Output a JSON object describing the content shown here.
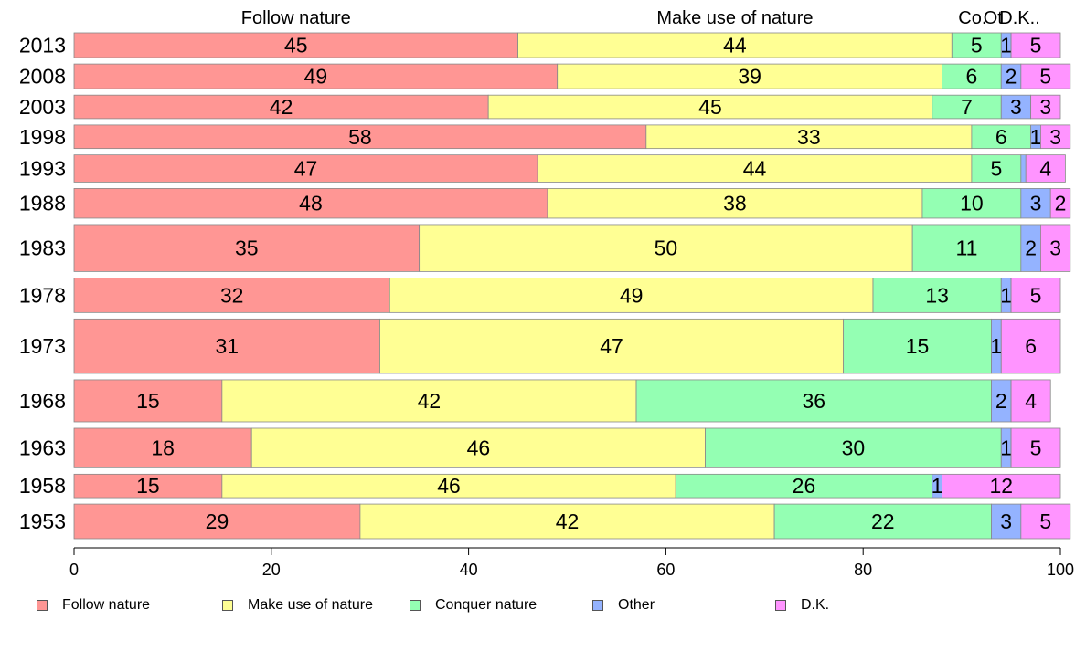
{
  "chart_data": {
    "type": "bar",
    "orientation": "horizontal",
    "stacked": true,
    "categories": [
      "2013",
      "2008",
      "2003",
      "1998",
      "1993",
      "1988",
      "1983",
      "1978",
      "1973",
      "1968",
      "1963",
      "1958",
      "1953"
    ],
    "bar_thickness_weight": [
      1.0,
      1.0,
      0.95,
      0.95,
      1.1,
      1.2,
      1.9,
      1.4,
      2.2,
      1.7,
      1.6,
      0.95,
      1.4
    ],
    "series": [
      {
        "name": "Follow nature",
        "header": "Follow nature",
        "color": "#ff9694",
        "values": [
          45,
          49,
          42,
          58,
          47,
          48,
          35,
          32,
          31,
          15,
          18,
          15,
          29
        ],
        "labels": [
          "45",
          "49",
          "42",
          "58",
          "47",
          "48",
          "35",
          "32",
          "31",
          "15",
          "18",
          "15",
          "29"
        ]
      },
      {
        "name": "Make use of nature",
        "header": "Make use of nature",
        "color": "#ffff94",
        "values": [
          44,
          39,
          45,
          33,
          44,
          38,
          50,
          49,
          47,
          42,
          46,
          46,
          42
        ],
        "labels": [
          "44",
          "39",
          "45",
          "33",
          "44",
          "38",
          "50",
          "49",
          "47",
          "42",
          "46",
          "46",
          "42"
        ]
      },
      {
        "name": "Conquer nature",
        "header": "Co.",
        "color": "#94ffb3",
        "values": [
          5,
          6,
          7,
          6,
          5,
          10,
          11,
          13,
          15,
          36,
          30,
          26,
          22
        ],
        "labels": [
          "5",
          "6",
          "7",
          "6",
          "5",
          "10",
          "11",
          "13",
          "15",
          "36",
          "30",
          "26",
          "22"
        ]
      },
      {
        "name": "Other",
        "header": "Ot",
        "color": "#94b3ff",
        "values": [
          1,
          2,
          3,
          1,
          0.5,
          3,
          2,
          1,
          1,
          2,
          1,
          1,
          3
        ],
        "labels": [
          "1",
          "2",
          "3",
          "1",
          "",
          "3",
          "2",
          "1",
          "1",
          "2",
          "1",
          "1",
          "3"
        ]
      },
      {
        "name": "D.K.",
        "header": "D.K..",
        "color": "#ff94ff",
        "values": [
          5,
          5,
          3,
          3,
          4,
          2,
          3,
          5,
          6,
          4,
          5,
          12,
          5
        ],
        "labels": [
          "5",
          "5",
          "3",
          "3",
          "4",
          "2",
          "3",
          "5",
          "6",
          "4",
          "5",
          "12",
          "5"
        ]
      }
    ],
    "xlim": [
      0,
      100
    ],
    "xticks": [
      "0",
      "20",
      "40",
      "60",
      "80",
      "100"
    ],
    "legend_position": "bottom",
    "grid": false
  }
}
